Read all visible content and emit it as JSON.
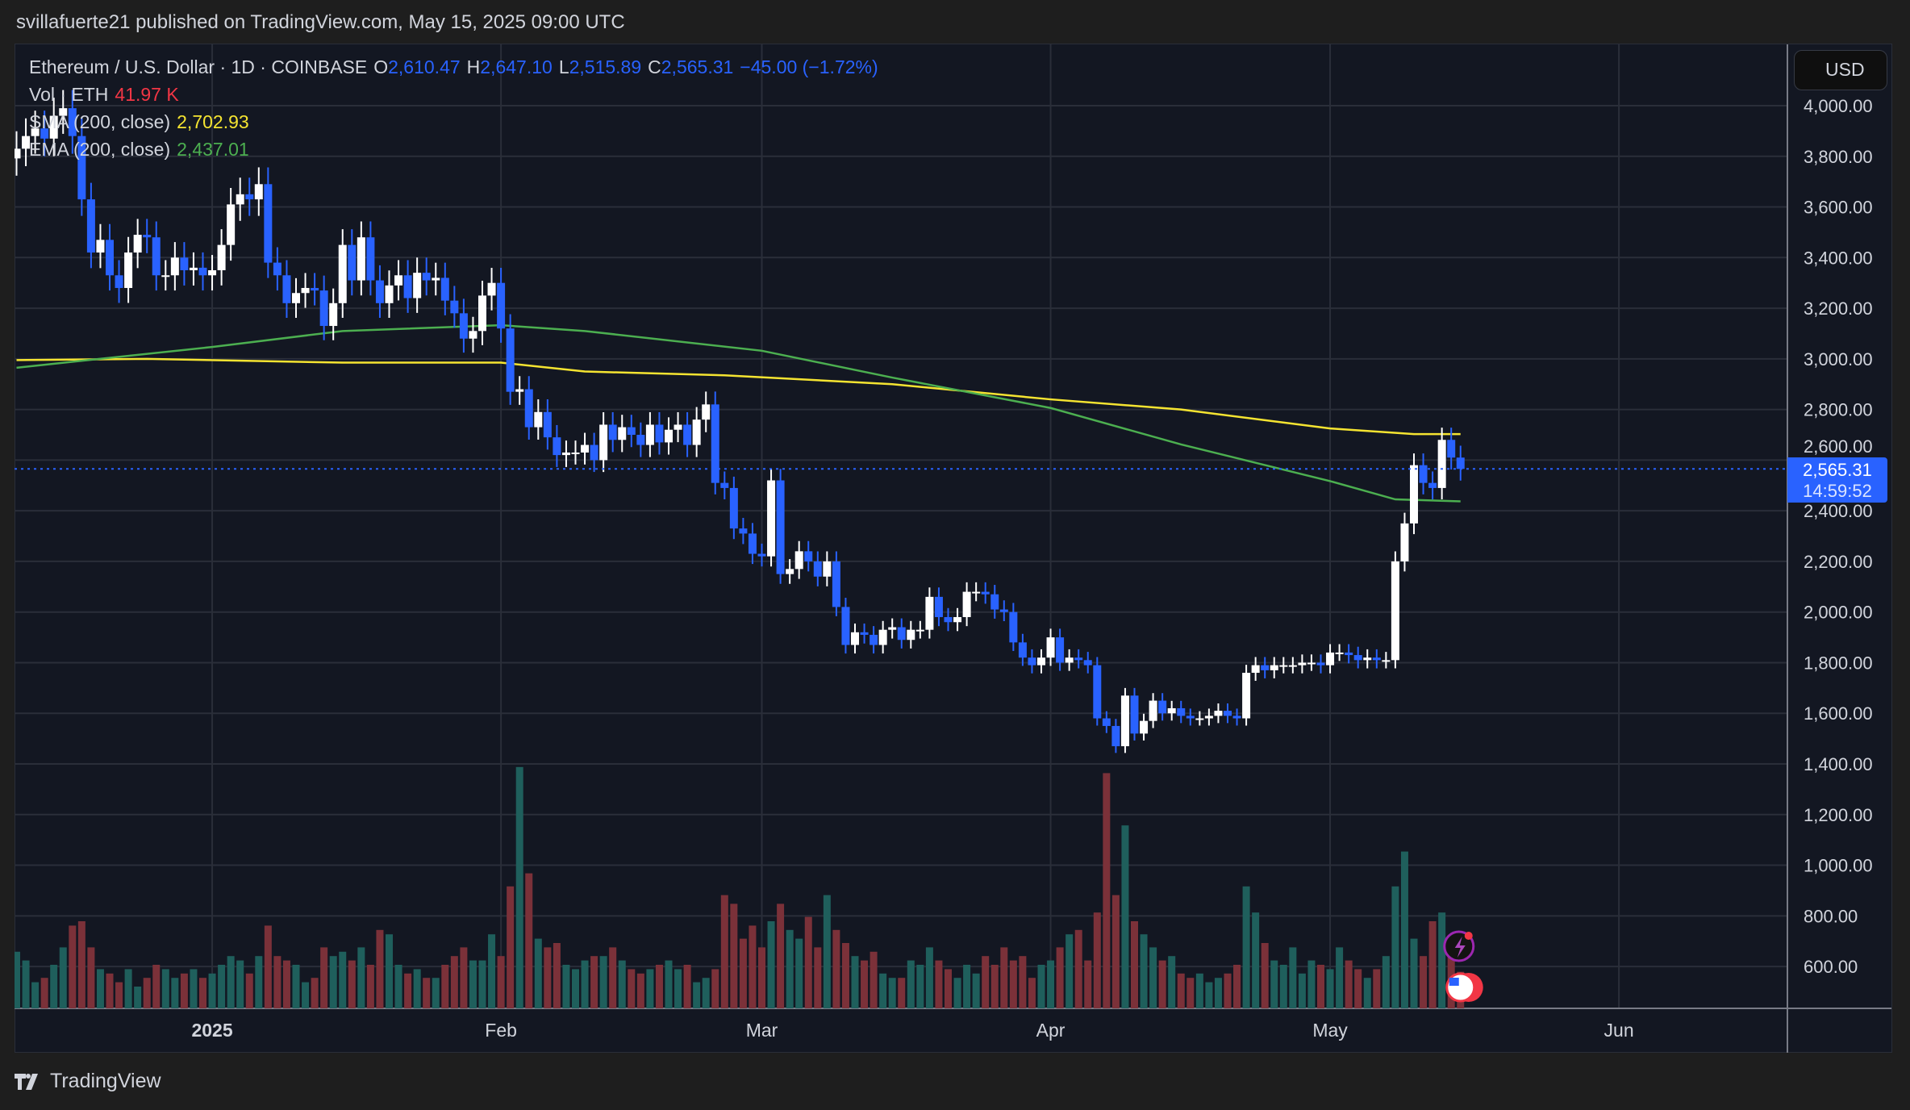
{
  "header": {
    "published": "svillafuerte21 published on TradingView.com, May 15, 2025 09:00 UTC"
  },
  "legend": {
    "symbol": "Ethereum / U.S. Dollar · 1D · COINBASE",
    "o_label": "O",
    "o": "2,610.47",
    "h_label": "H",
    "h": "2,647.10",
    "l_label": "L",
    "l": "2,515.89",
    "c_label": "C",
    "c": "2,565.31",
    "change": "−45.00 (−1.72%)",
    "vol_label": "Vol · ETH",
    "vol": "41.97 K",
    "sma_label": "SMA (200, close)",
    "sma": "2,702.93",
    "ema_label": "EMA (200, close)",
    "ema": "2,437.01"
  },
  "axis": {
    "currency": "USD",
    "last_price": "2,565.31",
    "countdown": "14:59:52"
  },
  "footer": {
    "brand": "TradingView"
  },
  "colors": {
    "up": "#ffffff",
    "down": "#2962ff",
    "vol_up": "#1f5f5c",
    "vol_down": "#7b3139",
    "sma": "#f5e431",
    "ema": "#4caf50",
    "grid": "#2a2e39"
  },
  "chart_data": {
    "type": "candlestick",
    "start_date": "2024-12-11",
    "end_date": "2025-05-15",
    "ylim": [
      430,
      4280
    ],
    "y_ticks": [
      "4,000.00",
      "3,800.00",
      "3,600.00",
      "3,400.00",
      "3,200.00",
      "3,000.00",
      "2,800.00",
      "2,600.00",
      "2,400.00",
      "2,200.00",
      "2,000.00",
      "1,800.00",
      "1,600.00",
      "1,400.00",
      "1,200.00",
      "1,000.00",
      "800.00",
      "600.00"
    ],
    "y_tick_values": [
      4000,
      3800,
      3600,
      3400,
      3200,
      3000,
      2800,
      2600,
      2400,
      2200,
      2000,
      1800,
      1600,
      1400,
      1200,
      1000,
      800,
      600
    ],
    "x_ticks": [
      {
        "label": "2025",
        "date": "2025-01-01"
      },
      {
        "label": "Feb",
        "date": "2025-02-01"
      },
      {
        "label": "Mar",
        "date": "2025-03-01"
      },
      {
        "label": "Apr",
        "date": "2025-04-01"
      },
      {
        "label": "May",
        "date": "2025-05-01"
      },
      {
        "label": "Jun",
        "date": "2025-06-01"
      }
    ],
    "close": [
      3830,
      3880,
      3910,
      3870,
      3960,
      3990,
      3880,
      3630,
      3420,
      3470,
      3330,
      3280,
      3420,
      3490,
      3480,
      3330,
      3330,
      3400,
      3350,
      3360,
      3330,
      3350,
      3450,
      3610,
      3650,
      3630,
      3690,
      3380,
      3330,
      3220,
      3260,
      3280,
      3270,
      3130,
      3220,
      3450,
      3310,
      3480,
      3310,
      3220,
      3290,
      3330,
      3240,
      3340,
      3310,
      3320,
      3230,
      3180,
      3080,
      3110,
      3250,
      3300,
      3120,
      2870,
      2880,
      2730,
      2790,
      2690,
      2620,
      2630,
      2630,
      2660,
      2600,
      2740,
      2680,
      2730,
      2700,
      2660,
      2740,
      2670,
      2720,
      2740,
      2660,
      2760,
      2820,
      2510,
      2490,
      2330,
      2310,
      2230,
      2220,
      2520,
      2150,
      2170,
      2240,
      2200,
      2140,
      2200,
      2020,
      1870,
      1920,
      1910,
      1870,
      1930,
      1940,
      1890,
      1930,
      1930,
      2060,
      1980,
      1960,
      1980,
      2080,
      2080,
      2070,
      2010,
      2000,
      1880,
      1820,
      1790,
      1820,
      1900,
      1800,
      1820,
      1810,
      1790,
      1580,
      1550,
      1470,
      1670,
      1520,
      1570,
      1650,
      1600,
      1620,
      1590,
      1580,
      1580,
      1590,
      1610,
      1590,
      1580,
      1760,
      1790,
      1770,
      1790,
      1790,
      1790,
      1800,
      1800,
      1790,
      1840,
      1840,
      1830,
      1810,
      1820,
      1810,
      1810,
      2200,
      2350,
      2580,
      2510,
      2490,
      2680,
      2610,
      2565.31
    ],
    "volume_k": [
      65,
      55,
      30,
      35,
      50,
      70,
      95,
      100,
      70,
      45,
      40,
      30,
      45,
      25,
      35,
      50,
      45,
      35,
      40,
      45,
      35,
      40,
      50,
      60,
      55,
      40,
      60,
      95,
      60,
      55,
      50,
      30,
      35,
      70,
      60,
      65,
      55,
      70,
      50,
      90,
      85,
      50,
      40,
      45,
      35,
      35,
      50,
      60,
      70,
      55,
      55,
      85,
      60,
      140,
      277,
      155,
      80,
      70,
      75,
      50,
      45,
      55,
      60,
      60,
      70,
      55,
      45,
      40,
      45,
      50,
      55,
      45,
      50,
      30,
      35,
      45,
      130,
      120,
      80,
      95,
      70,
      100,
      120,
      90,
      80,
      105,
      70,
      130,
      90,
      75,
      60,
      55,
      65,
      40,
      35,
      35,
      55,
      50,
      70,
      55,
      45,
      35,
      50,
      40,
      60,
      50,
      70,
      55,
      60,
      35,
      50,
      55,
      70,
      85,
      90,
      55,
      110,
      270,
      130,
      210,
      100,
      85,
      70,
      55,
      60,
      40,
      35,
      40,
      30,
      35,
      40,
      50,
      140,
      110,
      75,
      55,
      50,
      70,
      40,
      55,
      50,
      45,
      70,
      55,
      45,
      35,
      45,
      60,
      140,
      180,
      80,
      60,
      100,
      110,
      75,
      41.97
    ],
    "series": [
      {
        "name": "SMA (200, close)",
        "points": [
          [
            "2024-12-11",
            2995
          ],
          [
            "2024-12-25",
            3000
          ],
          [
            "2025-01-15",
            2985
          ],
          [
            "2025-02-01",
            2985
          ],
          [
            "2025-02-10",
            2950
          ],
          [
            "2025-02-25",
            2935
          ],
          [
            "2025-03-15",
            2900
          ],
          [
            "2025-04-01",
            2840
          ],
          [
            "2025-04-15",
            2800
          ],
          [
            "2025-05-01",
            2725
          ],
          [
            "2025-05-10",
            2703
          ],
          [
            "2025-05-15",
            2702.93
          ]
        ]
      },
      {
        "name": "EMA (200, close)",
        "points": [
          [
            "2024-12-11",
            2965
          ],
          [
            "2025-01-01",
            3047
          ],
          [
            "2025-01-15",
            3110
          ],
          [
            "2025-02-01",
            3133
          ],
          [
            "2025-02-10",
            3110
          ],
          [
            "2025-03-01",
            3032
          ],
          [
            "2025-03-15",
            2926
          ],
          [
            "2025-04-01",
            2806
          ],
          [
            "2025-04-15",
            2662
          ],
          [
            "2025-05-01",
            2517
          ],
          [
            "2025-05-08",
            2445
          ],
          [
            "2025-05-15",
            2437.01
          ]
        ]
      }
    ]
  }
}
